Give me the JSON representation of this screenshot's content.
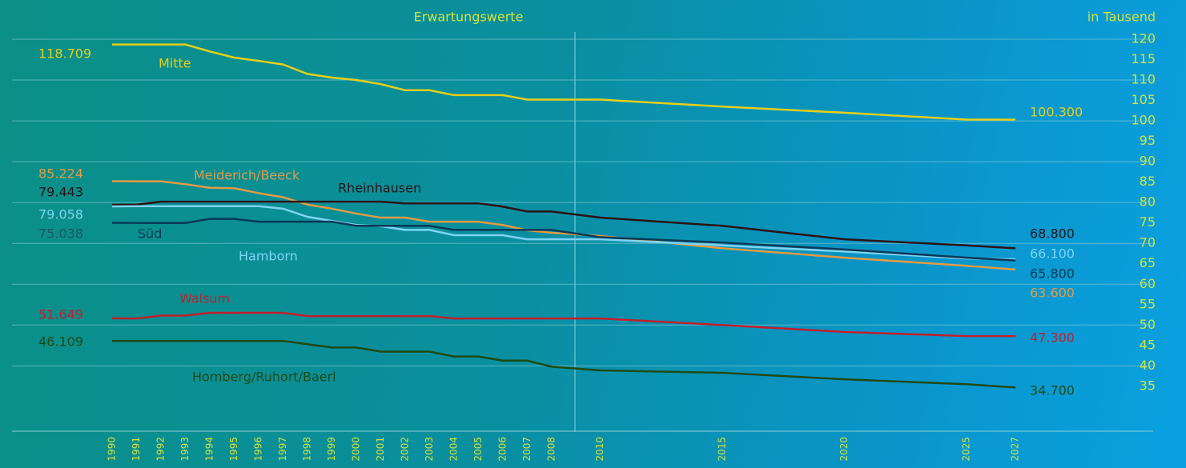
{
  "chart_data": {
    "type": "line",
    "title": "Erwartungswerte",
    "unit_label": "in Tausend",
    "x": [
      1990,
      1991,
      1992,
      1993,
      1994,
      1995,
      1996,
      1997,
      1998,
      1999,
      2000,
      2001,
      2002,
      2003,
      2004,
      2005,
      2006,
      2007,
      2008,
      2010,
      2015,
      2020,
      2025,
      2027
    ],
    "xlim": [
      1990,
      2027
    ],
    "xticks": [
      1990,
      1991,
      1992,
      1993,
      1994,
      1995,
      1996,
      1997,
      1998,
      1999,
      2000,
      2001,
      2002,
      2003,
      2004,
      2005,
      2006,
      2007,
      2008,
      2010,
      2015,
      2020,
      2025,
      2027
    ],
    "ylim": [
      24,
      120
    ],
    "yticks": [
      35,
      40,
      45,
      50,
      55,
      60,
      65,
      70,
      75,
      80,
      85,
      90,
      95,
      100,
      105,
      110,
      115,
      120
    ],
    "grid": true,
    "series": [
      {
        "name": "Mitte",
        "color": "#e6cf1a",
        "values": [
          118.709,
          118.7,
          118.7,
          118.7,
          117,
          115.5,
          114.7,
          113.8,
          111.5,
          110.6,
          110,
          109,
          107.5,
          107.5,
          106.3,
          106.3,
          106.3,
          105.2,
          105.2,
          105.2,
          103.5,
          102,
          100.3,
          100.3
        ],
        "value_labels": [
          "118.709",
          null,
          null,
          null,
          null,
          null,
          null,
          null,
          null,
          null,
          null,
          null,
          null,
          null,
          null,
          null,
          null,
          null,
          null,
          null,
          null,
          null,
          null,
          "100.300"
        ]
      },
      {
        "name": "Meiderich/Beeck",
        "color": "#e29a45",
        "values": [
          85.224,
          85.2,
          85.2,
          84.5,
          83.6,
          83.5,
          82.3,
          81.3,
          79.5,
          78.5,
          77.3,
          76.3,
          76.3,
          75.3,
          75.3,
          75.3,
          74.5,
          73.2,
          72.6,
          71.8,
          68.8,
          66.5,
          64.5,
          63.6
        ],
        "value_labels": [
          "85.224",
          null,
          null,
          null,
          null,
          null,
          null,
          null,
          null,
          null,
          null,
          null,
          null,
          null,
          null,
          null,
          null,
          null,
          null,
          null,
          null,
          null,
          null,
          "63.600"
        ]
      },
      {
        "name": "Rheinhausen",
        "color": "#2a1416",
        "values": [
          79.443,
          79.5,
          80.2,
          80.2,
          80.2,
          80.2,
          80.2,
          80.2,
          80.2,
          80.2,
          80.2,
          80.2,
          79.8,
          79.8,
          79.8,
          79.8,
          79,
          77.8,
          77.8,
          76.3,
          74.3,
          71,
          69.5,
          68.8
        ],
        "value_labels": [
          "79.443",
          null,
          null,
          null,
          null,
          null,
          null,
          null,
          null,
          null,
          null,
          null,
          null,
          null,
          null,
          null,
          null,
          null,
          null,
          null,
          null,
          null,
          null,
          "68.800"
        ]
      },
      {
        "name": "Hamborn",
        "color": "#7fd3f2",
        "values": [
          79.058,
          79.1,
          79.1,
          79.1,
          79.1,
          79.1,
          79.1,
          78.5,
          76.5,
          75.5,
          74.5,
          74.2,
          73.3,
          73.3,
          72,
          72,
          72,
          71,
          71,
          71,
          69.5,
          68,
          66.3,
          66.1
        ],
        "value_labels": [
          "79.058",
          null,
          null,
          null,
          null,
          null,
          null,
          null,
          null,
          null,
          null,
          null,
          null,
          null,
          null,
          null,
          null,
          null,
          null,
          null,
          null,
          null,
          null,
          "66.100"
        ]
      },
      {
        "name": "Süd",
        "color": "#0b3957",
        "values": [
          75.038,
          75,
          75,
          75,
          76,
          76,
          75.3,
          75.3,
          75.3,
          75.3,
          74.3,
          74.3,
          74.3,
          74.3,
          73.3,
          73.3,
          73.3,
          73.3,
          73.3,
          71.5,
          70.2,
          68.5,
          66.5,
          65.8
        ],
        "value_labels": [
          "75.038",
          null,
          null,
          null,
          null,
          null,
          null,
          null,
          null,
          null,
          null,
          null,
          null,
          null,
          null,
          null,
          null,
          null,
          null,
          null,
          null,
          null,
          null,
          "65.800"
        ]
      },
      {
        "name": "Walsum",
        "color": "#c0202c",
        "values": [
          51.649,
          51.6,
          52.3,
          52.3,
          53,
          53,
          53,
          53,
          52.2,
          52.2,
          52.2,
          52.2,
          52.2,
          52.2,
          51.6,
          51.6,
          51.6,
          51.6,
          51.6,
          51.6,
          50,
          48.3,
          47.3,
          47.3
        ],
        "value_labels": [
          "51.649",
          null,
          null,
          null,
          null,
          null,
          null,
          null,
          null,
          null,
          null,
          null,
          null,
          null,
          null,
          null,
          null,
          null,
          null,
          null,
          null,
          null,
          null,
          "47.300"
        ]
      },
      {
        "name": "Homberg/Ruhort/Baerl",
        "color": "#1f4a12",
        "values": [
          46.109,
          46.1,
          46.1,
          46.1,
          46.1,
          46.1,
          46.1,
          46.1,
          45.3,
          44.5,
          44.5,
          43.5,
          43.5,
          43.5,
          42.3,
          42.3,
          41.3,
          41.3,
          39.8,
          38.9,
          38.3,
          36.7,
          35.5,
          34.7
        ],
        "value_labels": [
          "46.109",
          null,
          null,
          null,
          null,
          null,
          null,
          null,
          null,
          null,
          null,
          null,
          null,
          null,
          null,
          null,
          null,
          null,
          null,
          null,
          null,
          null,
          null,
          "34.700"
        ]
      }
    ]
  }
}
